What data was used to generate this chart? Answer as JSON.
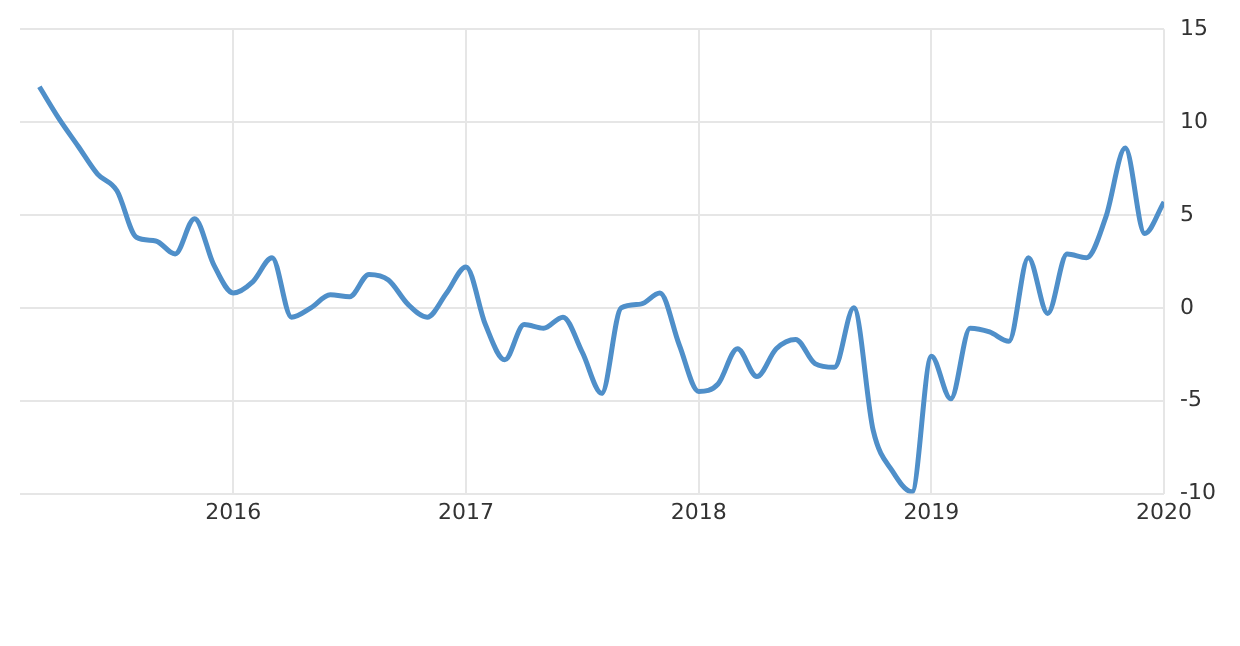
{
  "chart_data": {
    "type": "line",
    "x": [
      "2015-03",
      "2015-04",
      "2015-05",
      "2015-06",
      "2015-07",
      "2015-08",
      "2015-09",
      "2015-10",
      "2015-11",
      "2015-12",
      "2016-01",
      "2016-02",
      "2016-03",
      "2016-04",
      "2016-05",
      "2016-06",
      "2016-07",
      "2016-08",
      "2016-09",
      "2016-10",
      "2016-11",
      "2016-12",
      "2017-01",
      "2017-02",
      "2017-03",
      "2017-04",
      "2017-05",
      "2017-06",
      "2017-07",
      "2017-08",
      "2017-09",
      "2017-10",
      "2017-11",
      "2017-12",
      "2018-01",
      "2018-02",
      "2018-03",
      "2018-04",
      "2018-05",
      "2018-06",
      "2018-07",
      "2018-08",
      "2018-09",
      "2018-10",
      "2018-11",
      "2018-12",
      "2019-01",
      "2019-02",
      "2019-03",
      "2019-04",
      "2019-05",
      "2019-06",
      "2019-07",
      "2019-08",
      "2019-09",
      "2019-10",
      "2019-11",
      "2019-12",
      "2020-01"
    ],
    "series": [
      {
        "color": "#4f8fc9",
        "values": [
          11.9,
          10.2,
          8.7,
          7.2,
          6.3,
          3.8,
          3.6,
          2.9,
          4.8,
          2.3,
          0.8,
          1.4,
          2.7,
          -0.5,
          0.0,
          0.7,
          0.6,
          1.8,
          1.5,
          0.2,
          -0.5,
          0.8,
          2.2,
          -0.9,
          -2.8,
          -0.9,
          -1.1,
          -0.5,
          -2.4,
          -4.6,
          0.0,
          0.2,
          0.8,
          -2.0,
          -4.5,
          -4.1,
          -2.2,
          -3.7,
          -2.2,
          -1.7,
          -3.0,
          -3.2,
          0.0,
          -6.6,
          -8.8,
          -9.9,
          -2.6,
          -4.9,
          -1.1,
          -1.3,
          -1.8,
          2.7,
          -0.3,
          2.9,
          2.7,
          4.9,
          8.6,
          4.0,
          5.7
        ]
      }
    ],
    "xlim": [
      "2015-02",
      "2020-01"
    ],
    "xticks": [
      {
        "value": "2016",
        "label": "2016"
      },
      {
        "value": "2017",
        "label": "2017"
      },
      {
        "value": "2018",
        "label": "2018"
      },
      {
        "value": "2019",
        "label": "2019"
      },
      {
        "value": "2020",
        "label": "2020"
      }
    ],
    "ylim": [
      -10,
      15
    ],
    "yticks": [
      -10,
      -5,
      0,
      5,
      10,
      15
    ],
    "grid": true,
    "legend": false,
    "marker": "none",
    "line_style": "solid"
  }
}
